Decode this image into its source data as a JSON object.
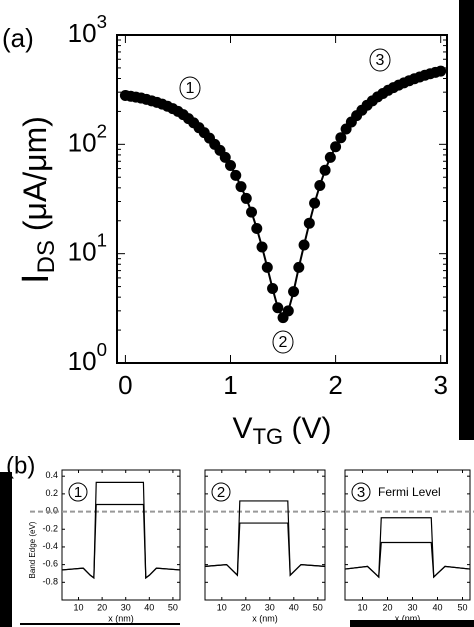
{
  "chart_data": [
    {
      "type": "line",
      "panel_label": "(a)",
      "log_y": true,
      "x": [
        0,
        0.05,
        0.1,
        0.15,
        0.2,
        0.25,
        0.3,
        0.35,
        0.4,
        0.45,
        0.5,
        0.55,
        0.6,
        0.65,
        0.7,
        0.75,
        0.8,
        0.85,
        0.9,
        0.95,
        1.0,
        1.05,
        1.1,
        1.15,
        1.2,
        1.25,
        1.3,
        1.35,
        1.4,
        1.45,
        1.5,
        1.55,
        1.6,
        1.65,
        1.7,
        1.75,
        1.8,
        1.85,
        1.9,
        1.95,
        2.0,
        2.05,
        2.1,
        2.15,
        2.2,
        2.25,
        2.3,
        2.35,
        2.4,
        2.45,
        2.5,
        2.55,
        2.6,
        2.65,
        2.7,
        2.75,
        2.8,
        2.85,
        2.9,
        2.95,
        3.0
      ],
      "series": [
        {
          "color": "#000000",
          "values": [
            280,
            275,
            270,
            265,
            258,
            250,
            242,
            233,
            223,
            212,
            200,
            187,
            172,
            157,
            142,
            128,
            114,
            100,
            88,
            76,
            64,
            52,
            41,
            32,
            24,
            17,
            11.5,
            7.5,
            4.8,
            3.2,
            2.6,
            3.0,
            4.5,
            7.5,
            12,
            19,
            29,
            42,
            58,
            76,
            95,
            115,
            138,
            160,
            183,
            205,
            228,
            250,
            272,
            292,
            312,
            330,
            348,
            365,
            382,
            398,
            413,
            428,
            442,
            455,
            467
          ]
        }
      ],
      "xlim": [
        -0.08,
        3.06
      ],
      "ylim": [
        1,
        1000
      ],
      "xticks": [
        0,
        1,
        2,
        3
      ],
      "yticks": [
        {
          "value": 1,
          "label": "10",
          "exp": "0"
        },
        {
          "value": 10,
          "label": "10",
          "exp": "1"
        },
        {
          "value": 100,
          "label": "10",
          "exp": "2"
        },
        {
          "value": 1000,
          "label": "10",
          "exp": "3"
        }
      ],
      "xlabel": {
        "main": "V",
        "sub": "TG",
        "rest": " (V)"
      },
      "ylabel": {
        "main": "I",
        "sub": "DS",
        "rest": " (μA/μm)"
      },
      "annotations": [
        "1",
        "2",
        "3"
      ]
    },
    {
      "type": "line",
      "panel_label": "(b)",
      "badge": "1",
      "x": [
        3,
        12,
        15,
        16.5,
        17.5,
        37.5,
        38.5,
        40,
        43,
        53
      ],
      "series": [
        {
          "color": "#000000",
          "values": [
            -0.66,
            -0.64,
            -0.72,
            -0.75,
            0.33,
            0.33,
            -0.75,
            -0.72,
            -0.64,
            -0.66
          ]
        },
        {
          "color": "#000000",
          "values": [
            -0.66,
            -0.64,
            -0.72,
            -0.75,
            0.08,
            0.08,
            -0.75,
            -0.72,
            -0.64,
            -0.66
          ]
        }
      ],
      "xlim": [
        3,
        53
      ],
      "ylim": [
        -1.0,
        0.47
      ],
      "xticks": [
        10,
        20,
        30,
        40,
        50
      ],
      "yticks": [
        0.4,
        0.2,
        {
          "value": 0,
          "label": "0.0"
        },
        -0.2,
        -0.4,
        -0.6,
        -0.8
      ],
      "xlabel": "x (nm)",
      "ylabel": "Band Edge (eV)",
      "fermi_level": 0,
      "fermi_color": "#999999"
    },
    {
      "type": "line",
      "badge": "2",
      "x": [
        3,
        12,
        15,
        16.5,
        17.5,
        37.5,
        38.5,
        40,
        43,
        53
      ],
      "series": [
        {
          "color": "#000000",
          "values": [
            -0.62,
            -0.6,
            -0.68,
            -0.72,
            0.12,
            0.12,
            -0.72,
            -0.68,
            -0.6,
            -0.62
          ]
        },
        {
          "color": "#000000",
          "values": [
            -0.62,
            -0.6,
            -0.68,
            -0.72,
            -0.13,
            -0.13,
            -0.72,
            -0.68,
            -0.6,
            -0.62
          ]
        }
      ],
      "xlim": [
        3,
        53
      ],
      "ylim": [
        -1.0,
        0.47
      ],
      "xticks": [
        10,
        20,
        30,
        40,
        50
      ],
      "xlabel": "x (nm)",
      "fermi_level": 0,
      "fermi_color": "#999999"
    },
    {
      "type": "line",
      "badge": "3",
      "annotation": "Fermi Level",
      "x": [
        3,
        12,
        15,
        16.5,
        17.5,
        37.5,
        38.5,
        40,
        43,
        53
      ],
      "series": [
        {
          "color": "#000000",
          "values": [
            -0.65,
            -0.62,
            -0.7,
            -0.74,
            -0.07,
            -0.07,
            -0.74,
            -0.7,
            -0.62,
            -0.65
          ]
        },
        {
          "color": "#000000",
          "values": [
            -0.65,
            -0.62,
            -0.7,
            -0.74,
            -0.35,
            -0.35,
            -0.74,
            -0.7,
            -0.62,
            -0.65
          ]
        }
      ],
      "xlim": [
        3,
        53
      ],
      "ylim": [
        -1.0,
        0.47
      ],
      "xticks": [
        10,
        20,
        30,
        40,
        50
      ],
      "xlabel": "x (nm)",
      "fermi_level": 0,
      "fermi_color": "#999999"
    }
  ]
}
